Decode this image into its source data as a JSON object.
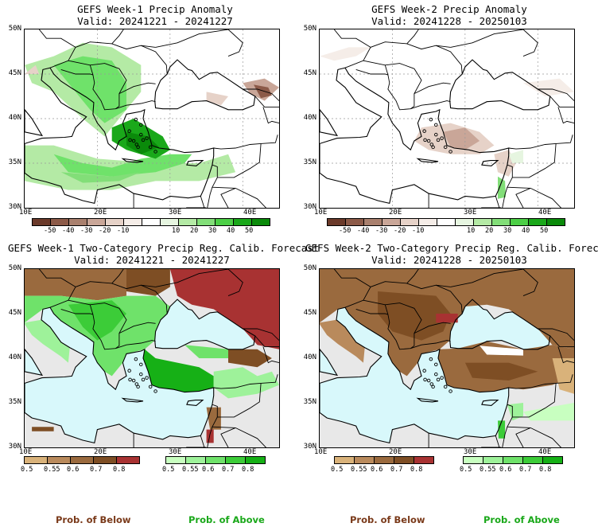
{
  "panels": [
    {
      "title": "GEFS Week-1 Precip Anomaly",
      "valid": "Valid: 20241221 - 20241227"
    },
    {
      "title": "GEFS Week-2 Precip Anomaly",
      "valid": "Valid: 20241228 - 20250103"
    },
    {
      "title": "GEFS Week-1 Two-Category Precip Reg. Calib. Forecast",
      "valid": "Valid: 20241221 - 20241227"
    },
    {
      "title": "GEFS Week-2 Two-Category Precip Reg. Calib. Forecast",
      "valid": "Valid: 20241228 - 20250103"
    }
  ],
  "lat_labels": [
    "50N",
    "45N",
    "40N",
    "35N",
    "30N"
  ],
  "lon_labels": [
    "10E",
    "20E",
    "30E",
    "40E"
  ],
  "anomaly_colorbar": {
    "labels": [
      "-50",
      "-40",
      "-30",
      "-20",
      "-10",
      "10",
      "20",
      "30",
      "40",
      "50"
    ],
    "colors": [
      "#6b3a2a",
      "#8c5a48",
      "#a9806e",
      "#c9a698",
      "#e6d2c8",
      "#f5ede8",
      "#ffffff",
      "#e6f5e0",
      "#b4eaa5",
      "#82de78",
      "#4ccf46",
      "#1aa81a",
      "#0a8a0a"
    ]
  },
  "prob_below_colorbar": {
    "labels": [
      "0.5",
      "0.55",
      "0.6",
      "0.7",
      "0.8"
    ],
    "colors": [
      "#d9b27a",
      "#b98a5c",
      "#9a6a3e",
      "#7e4e24",
      "#a83232"
    ]
  },
  "prob_above_colorbar": {
    "labels": [
      "0.5",
      "0.55",
      "0.6",
      "0.7",
      "0.8"
    ],
    "colors": [
      "#c8ffc0",
      "#9ef29a",
      "#6fe26a",
      "#3ccc38",
      "#16b016"
    ]
  },
  "legend": {
    "below": "Prob. of Below",
    "above": "Prob. of Above"
  },
  "colors": {
    "below_text": "#7a3a1a",
    "above_text": "#1aa81a",
    "sea": "#d8f8fb",
    "nodata": "#e8e8e8"
  }
}
